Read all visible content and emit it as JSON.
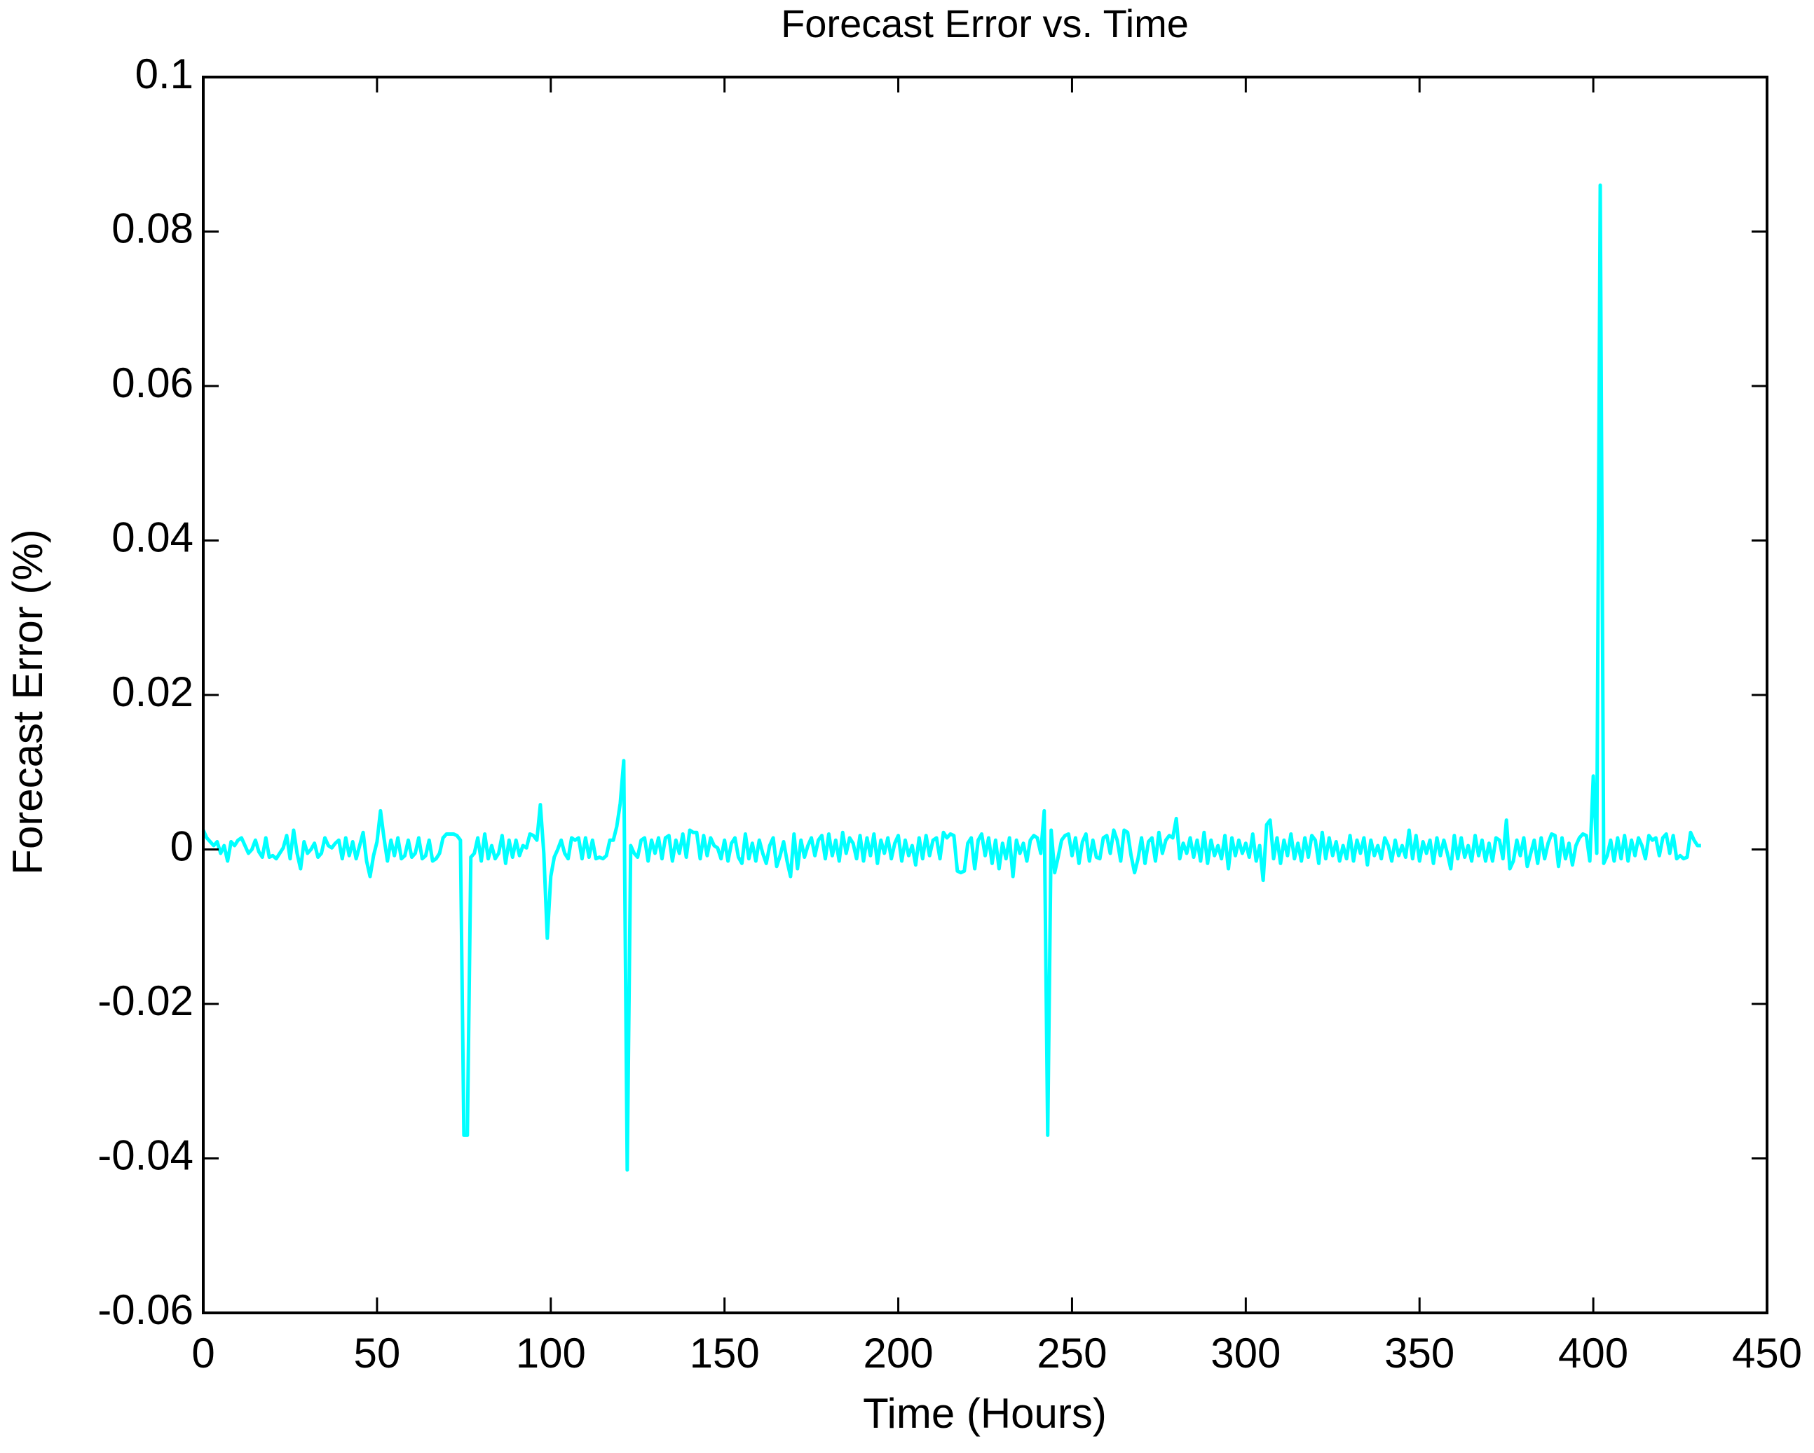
{
  "chart_data": {
    "type": "line",
    "title": "Forecast Error vs. Time",
    "x_label": "Time (Hours)",
    "y_label": "Forecast Error (%)",
    "color": "#00ffff",
    "xlim": [
      0,
      450
    ],
    "xticks": [
      0,
      50,
      100,
      150,
      200,
      250,
      300,
      350,
      400,
      450
    ],
    "ylim": [
      -0.06,
      0.1
    ],
    "yticks": [
      -0.06,
      -0.04,
      -0.02,
      0,
      0.02,
      0.04,
      0.06,
      0.08,
      0.1
    ],
    "x": [
      0,
      1,
      2,
      3,
      4,
      5,
      6,
      7,
      8,
      9,
      10,
      11,
      12,
      13,
      14,
      15,
      16,
      17,
      18,
      19,
      20,
      21,
      22,
      23,
      24,
      25,
      26,
      27,
      28,
      29,
      30,
      31,
      32,
      33,
      34,
      35,
      36,
      37,
      38,
      39,
      40,
      41,
      42,
      43,
      44,
      45,
      46,
      47,
      48,
      49,
      50,
      51,
      52,
      53,
      54,
      55,
      56,
      57,
      58,
      59,
      60,
      61,
      62,
      63,
      64,
      65,
      66,
      67,
      68,
      69,
      70,
      71,
      72,
      73,
      74,
      75,
      76,
      77,
      78,
      79,
      80,
      81,
      82,
      83,
      84,
      85,
      86,
      87,
      88,
      89,
      90,
      91,
      92,
      93,
      94,
      95,
      96,
      97,
      98,
      99,
      100,
      101,
      102,
      103,
      104,
      105,
      106,
      107,
      108,
      109,
      110,
      111,
      112,
      113,
      114,
      115,
      116,
      117,
      118,
      119,
      120,
      121,
      122,
      123,
      124,
      125,
      126,
      127,
      128,
      129,
      130,
      131,
      132,
      133,
      134,
      135,
      136,
      137,
      138,
      139,
      140,
      141,
      142,
      143,
      144,
      145,
      146,
      147,
      148,
      149,
      150,
      151,
      152,
      153,
      154,
      155,
      156,
      157,
      158,
      159,
      160,
      161,
      162,
      163,
      164,
      165,
      166,
      167,
      168,
      169,
      170,
      171,
      172,
      173,
      174,
      175,
      176,
      177,
      178,
      179,
      180,
      181,
      182,
      183,
      184,
      185,
      186,
      187,
      188,
      189,
      190,
      191,
      192,
      193,
      194,
      195,
      196,
      197,
      198,
      199,
      200,
      201,
      202,
      203,
      204,
      205,
      206,
      207,
      208,
      209,
      210,
      211,
      212,
      213,
      214,
      215,
      216,
      217,
      218,
      219,
      220,
      221,
      222,
      223,
      224,
      225,
      226,
      227,
      228,
      229,
      230,
      231,
      232,
      233,
      234,
      235,
      236,
      237,
      238,
      239,
      240,
      241,
      242,
      243,
      244,
      245,
      246,
      247,
      248,
      249,
      250,
      251,
      252,
      253,
      254,
      255,
      256,
      257,
      258,
      259,
      260,
      261,
      262,
      263,
      264,
      265,
      266,
      267,
      268,
      269,
      270,
      271,
      272,
      273,
      274,
      275,
      276,
      277,
      278,
      279,
      280,
      281,
      282,
      283,
      284,
      285,
      286,
      287,
      288,
      289,
      290,
      291,
      292,
      293,
      294,
      295,
      296,
      297,
      298,
      299,
      300,
      301,
      302,
      303,
      304,
      305,
      306,
      307,
      308,
      309,
      310,
      311,
      312,
      313,
      314,
      315,
      316,
      317,
      318,
      319,
      320,
      321,
      322,
      323,
      324,
      325,
      326,
      327,
      328,
      329,
      330,
      331,
      332,
      333,
      334,
      335,
      336,
      337,
      338,
      339,
      340,
      341,
      342,
      343,
      344,
      345,
      346,
      347,
      348,
      349,
      350,
      351,
      352,
      353,
      354,
      355,
      356,
      357,
      358,
      359,
      360,
      361,
      362,
      363,
      364,
      365,
      366,
      367,
      368,
      369,
      370,
      371,
      372,
      373,
      374,
      375,
      376,
      377,
      378,
      379,
      380,
      381,
      382,
      383,
      384,
      385,
      386,
      387,
      388,
      389,
      390,
      391,
      392,
      393,
      394,
      395,
      396,
      397,
      398,
      399,
      400,
      401,
      402,
      403,
      404,
      405,
      406,
      407,
      408,
      409,
      410,
      411,
      412,
      413,
      414,
      415,
      416,
      417,
      418,
      419,
      420,
      421,
      422,
      423,
      424,
      425,
      426,
      427,
      428,
      429,
      430,
      431
    ],
    "values": [
      0.0025,
      0.0015,
      0.001,
      0.0005,
      0.001,
      -0.0005,
      0.0005,
      -0.0015,
      0.001,
      0.0005,
      0.0012,
      0.0015,
      0.0005,
      -0.0005,
      0,
      0.0012,
      -0.0003,
      -0.001,
      0.0015,
      -0.001,
      -0.0008,
      -0.0012,
      -0.0005,
      0.0002,
      0.0018,
      -0.0012,
      0.0025,
      -0.0005,
      -0.0025,
      0.001,
      -0.0005,
      0,
      0.0008,
      -0.001,
      -0.0005,
      0.0015,
      0.0005,
      0.0002,
      0.0008,
      0.0012,
      -0.0012,
      0.0015,
      -0.0008,
      0.001,
      -0.0012,
      0.0005,
      0.0022,
      -0.0015,
      -0.0035,
      -0.0008,
      0.001,
      0.005,
      0.0015,
      -0.0015,
      0.0012,
      -0.0008,
      0.0015,
      -0.0012,
      -0.0008,
      0.0012,
      -0.001,
      -0.0005,
      0.0015,
      -0.0012,
      -0.0008,
      0.0012,
      -0.0015,
      -0.0012,
      -0.0005,
      0.0015,
      0.002,
      0.002,
      0.002,
      0.0018,
      0.0012,
      -0.037,
      -0.037,
      -0.001,
      -0.0005,
      0.0015,
      -0.0015,
      0.002,
      -0.0012,
      0.0005,
      -0.0012,
      -0.0005,
      0.0018,
      -0.0018,
      0.0012,
      -0.001,
      0.0012,
      -0.0008,
      0.0005,
      0.0002,
      0.002,
      0.0018,
      0.0012,
      0.0058,
      -0.0005,
      -0.0115,
      -0.0035,
      -0.001,
      0,
      0.0012,
      -0.0005,
      -0.0012,
      0.0015,
      0.0012,
      0.0015,
      -0.0012,
      0.0015,
      -0.001,
      0.0012,
      -0.0012,
      -0.001,
      -0.0012,
      -0.0008,
      0.0012,
      0.0012,
      0.003,
      0.006,
      0.0115,
      -0.0415,
      0.0005,
      -0.0005,
      -0.001,
      0.0012,
      0.0015,
      -0.0015,
      0.0012,
      -0.0005,
      0.0015,
      -0.0012,
      0.0015,
      0.0018,
      -0.0015,
      0.0012,
      -0.0005,
      0.002,
      -0.001,
      0.0025,
      0.0022,
      0.0022,
      -0.0012,
      0.0018,
      -0.0008,
      0.0015,
      0.0005,
      0.0002,
      -0.0012,
      0.0012,
      -0.0015,
      0.0008,
      0.0015,
      -0.001,
      -0.0018,
      0.002,
      -0.0012,
      0.0008,
      -0.0015,
      0.0012,
      -0.0005,
      -0.0018,
      0.0005,
      0.0015,
      -0.0022,
      -0.0008,
      0.001,
      -0.0015,
      -0.0035,
      0.002,
      -0.0025,
      0.0012,
      -0.001,
      0.0005,
      0.0015,
      -0.0008,
      0.0012,
      0.0018,
      -0.0012,
      0.002,
      -0.0008,
      0.0012,
      -0.0015,
      0.0022,
      -0.0005,
      0.0015,
      0.0008,
      -0.0012,
      0.0018,
      -0.0015,
      0.0015,
      -0.0008,
      0.002,
      -0.0018,
      0.0012,
      -0.0005,
      0.0015,
      -0.0012,
      0.0008,
      0.0018,
      -0.0015,
      0.0012,
      -0.0008,
      0.0005,
      -0.002,
      0.0015,
      -0.0012,
      0.0018,
      -0.0008,
      0.0012,
      0.0015,
      -0.0012,
      0.0022,
      0.0015,
      0.002,
      0.0018,
      -0.0028,
      -0.003,
      -0.0028,
      0.0008,
      0.0015,
      -0.0025,
      0.0012,
      0.002,
      -0.0008,
      0.0015,
      -0.0018,
      0.0012,
      -0.0025,
      0.0008,
      -0.0012,
      0.0015,
      -0.0035,
      0.0012,
      -0.0005,
      0.0008,
      -0.0015,
      0.0012,
      0.0018,
      0.0015,
      -0.0005,
      0.005,
      -0.037,
      0.0025,
      -0.003,
      -0.001,
      0.0012,
      0.0018,
      0.002,
      -0.0008,
      0.0015,
      -0.0018,
      0.001,
      0.002,
      -0.0015,
      0.0012,
      -0.001,
      -0.0012,
      0.0015,
      0.0018,
      -0.0005,
      0.0025,
      0.0012,
      -0.0015,
      0.0025,
      0.0022,
      -0.0008,
      -0.003,
      -0.0012,
      0.0015,
      -0.0018,
      0.001,
      0.0015,
      -0.0015,
      0.0022,
      -0.0005,
      0.0012,
      0.0018,
      0.0015,
      0.004,
      -0.0012,
      0.0008,
      -0.0005,
      0.0015,
      -0.001,
      0.0012,
      -0.0015,
      0.0022,
      -0.0018,
      0.0012,
      -0.0008,
      0.0005,
      -0.0012,
      0.0018,
      -0.0025,
      0.0015,
      -0.0008,
      0.0012,
      -0.0005,
      0.0008,
      -0.001,
      0.002,
      -0.0015,
      0.0005,
      -0.004,
      0.0032,
      0.0038,
      -0.0012,
      0.0015,
      -0.0018,
      0.0012,
      -0.0008,
      0.002,
      -0.0012,
      0.0008,
      -0.0015,
      0.0015,
      -0.001,
      0.0018,
      0.0012,
      -0.0018,
      0.0022,
      -0.0012,
      0.0015,
      -0.0008,
      0.001,
      -0.0015,
      0.0005,
      -0.0012,
      0.0018,
      -0.0015,
      0.0012,
      -0.0005,
      0.0015,
      -0.002,
      0.0012,
      -0.0008,
      0.0005,
      -0.0012,
      0.0015,
      0.0005,
      -0.0015,
      0.0012,
      -0.0008,
      0.0005,
      -0.001,
      0.0025,
      -0.0012,
      0.0018,
      -0.0015,
      0.001,
      -0.0005,
      0.0012,
      -0.0018,
      0.0015,
      -0.0008,
      0.0012,
      -0.0005,
      -0.0025,
      0.0018,
      -0.0012,
      0.0015,
      -0.001,
      0.0005,
      -0.0015,
      0.0018,
      -0.0008,
      0.0012,
      -0.0015,
      0.0008,
      -0.0015,
      0.0015,
      0.0012,
      -0.0012,
      0.0038,
      -0.0025,
      -0.0015,
      0.0012,
      -0.0008,
      0.0015,
      -0.0022,
      -0.0005,
      0.0012,
      -0.0018,
      0.0015,
      -0.0012,
      0.0008,
      0.002,
      0.0018,
      -0.0022,
      0.0015,
      -0.0012,
      0.0008,
      -0.002,
      0.0005,
      0.0015,
      0.002,
      0.0018,
      -0.0015,
      0.0095,
      -0.0005,
      0.086,
      -0.0018,
      -0.0008,
      0.0012,
      -0.0015,
      0.0015,
      -0.0012,
      0.0018,
      -0.0015,
      0.0012,
      -0.0008,
      0.0015,
      0.0005,
      -0.0012,
      0.0018,
      0.0012,
      0.0015,
      -0.0008,
      0.0015,
      0.002,
      -0.0005,
      0.0018,
      -0.0012,
      -0.0008,
      -0.0012,
      -0.001,
      0.0022,
      0.0012,
      0.0005,
      0.0005
    ]
  }
}
